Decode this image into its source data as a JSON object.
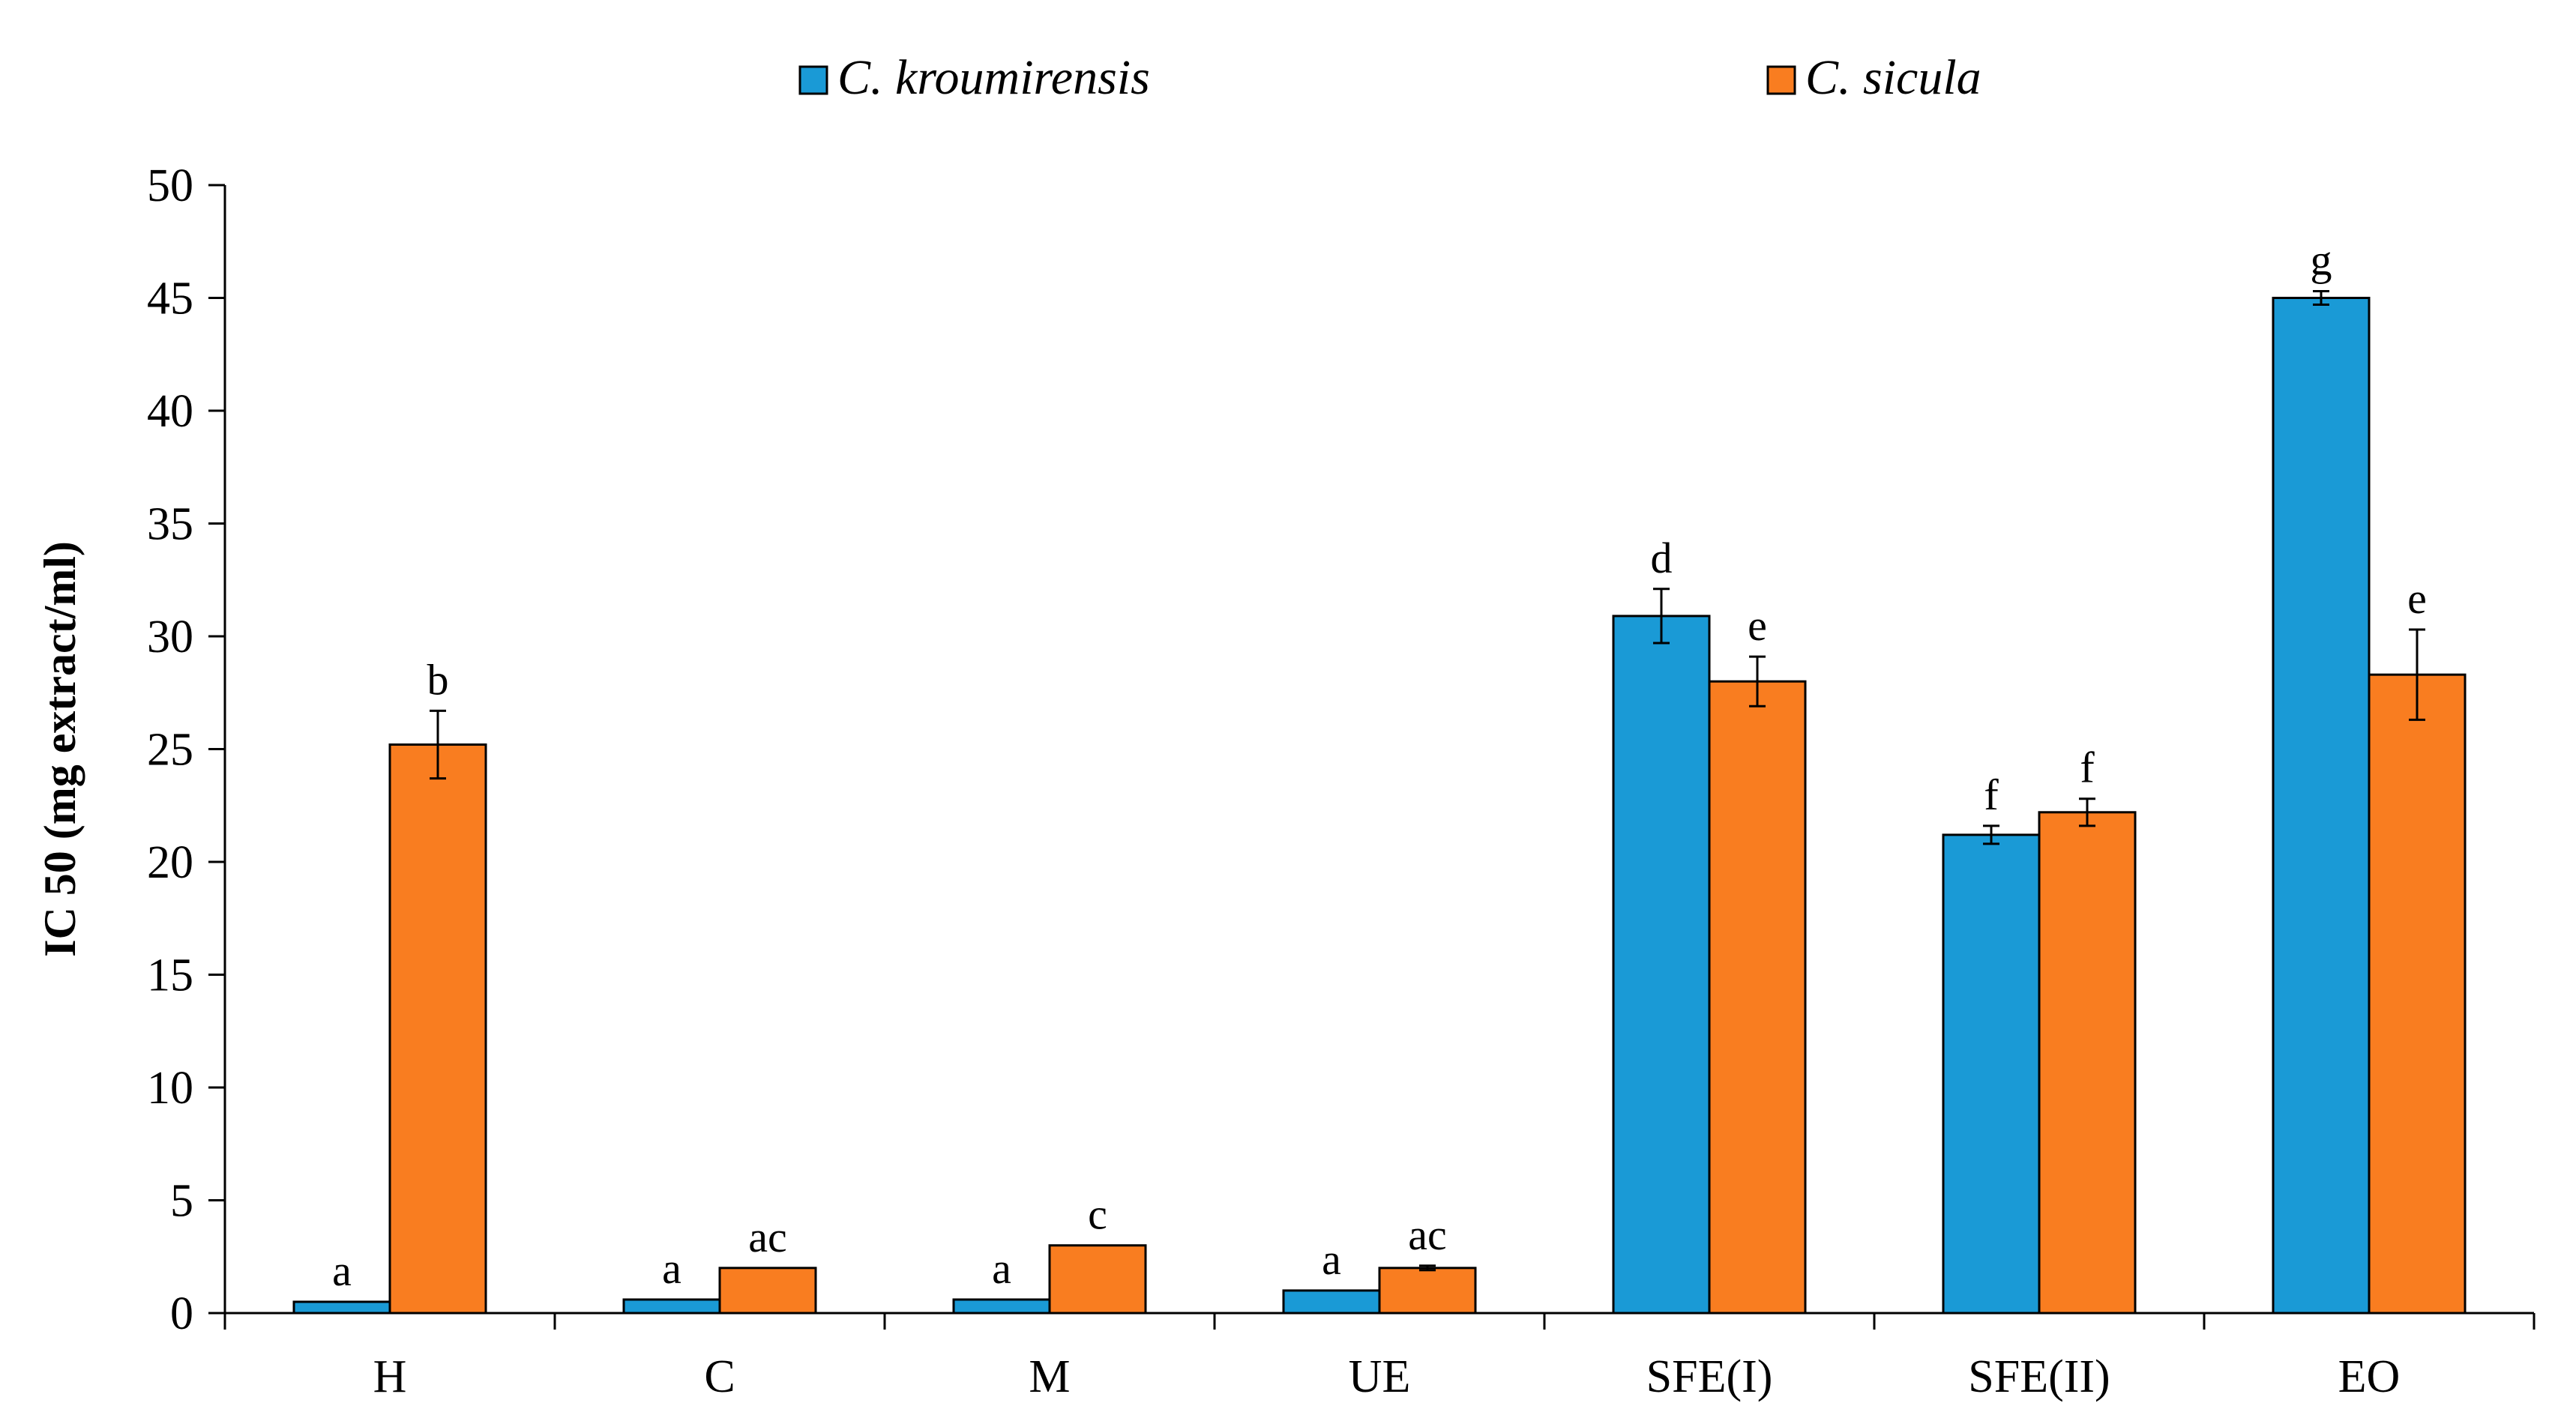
{
  "chart_data": {
    "type": "bar",
    "title": "",
    "xlabel": "",
    "ylabel": "IC 50 (mg extract/ml)",
    "ylim": [
      0,
      50
    ],
    "yticks": [
      0,
      5,
      10,
      15,
      20,
      25,
      30,
      35,
      40,
      45,
      50
    ],
    "grid": false,
    "legend_position": "top",
    "categories": [
      "H",
      "C",
      "M",
      "UE",
      "SFE(I)",
      "SFE(II)",
      "EO"
    ],
    "series": [
      {
        "name": "C. kroumirensis",
        "color": "#1a9ad6",
        "values": [
          0.5,
          0.6,
          0.6,
          1.0,
          30.9,
          21.2,
          45.0
        ],
        "errors": [
          0,
          0,
          0,
          0,
          1.2,
          0.4,
          0.3
        ],
        "labels": [
          "a",
          "a",
          "a",
          "a",
          "d",
          "f",
          "g"
        ]
      },
      {
        "name": "C. sicula",
        "color": "#f97d20",
        "values": [
          25.2,
          2.0,
          3.0,
          2.0,
          28.0,
          22.2,
          28.3
        ],
        "errors": [
          1.5,
          0,
          0,
          0.1,
          1.1,
          0.6,
          2.0
        ],
        "labels": [
          "b",
          "ac",
          "c",
          "ac",
          "e",
          "f",
          "e"
        ]
      }
    ]
  }
}
